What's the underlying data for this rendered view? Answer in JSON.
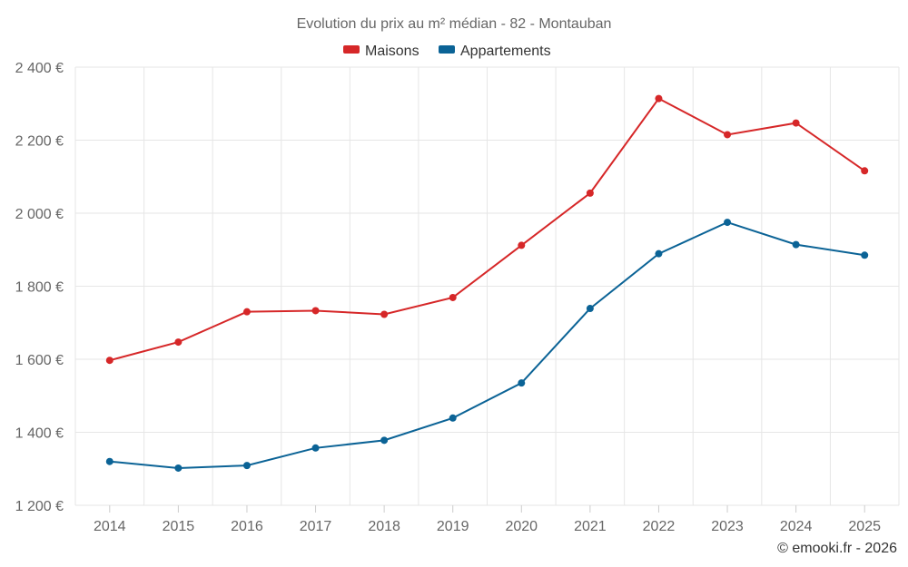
{
  "chart_data": {
    "type": "line",
    "title": "Evolution du prix au m² médian - 82 - Montauban",
    "x": [
      "2014",
      "2015",
      "2016",
      "2017",
      "2018",
      "2019",
      "2020",
      "2021",
      "2022",
      "2023",
      "2024",
      "2025"
    ],
    "series": [
      {
        "name": "Maisons",
        "color": "#d62728",
        "values": [
          1597,
          1647,
          1730,
          1733,
          1723,
          1769,
          1912,
          2055,
          2314,
          2215,
          2247,
          2116
        ]
      },
      {
        "name": "Appartements",
        "color": "#0b6396",
        "values": [
          1320,
          1302,
          1309,
          1357,
          1378,
          1439,
          1535,
          1739,
          1889,
          1975,
          1914,
          1885
        ]
      }
    ],
    "ylim": [
      1200,
      2400
    ],
    "yticks": [
      1200,
      1400,
      1600,
      1800,
      2000,
      2200,
      2400
    ],
    "ytick_labels": [
      "1 200 €",
      "1 400 €",
      "1 600 €",
      "1 800 €",
      "2 000 €",
      "2 200 €",
      "2 400 €"
    ],
    "legend_position": "top-center",
    "grid": true
  },
  "credit": "© emooki.fr - 2026"
}
